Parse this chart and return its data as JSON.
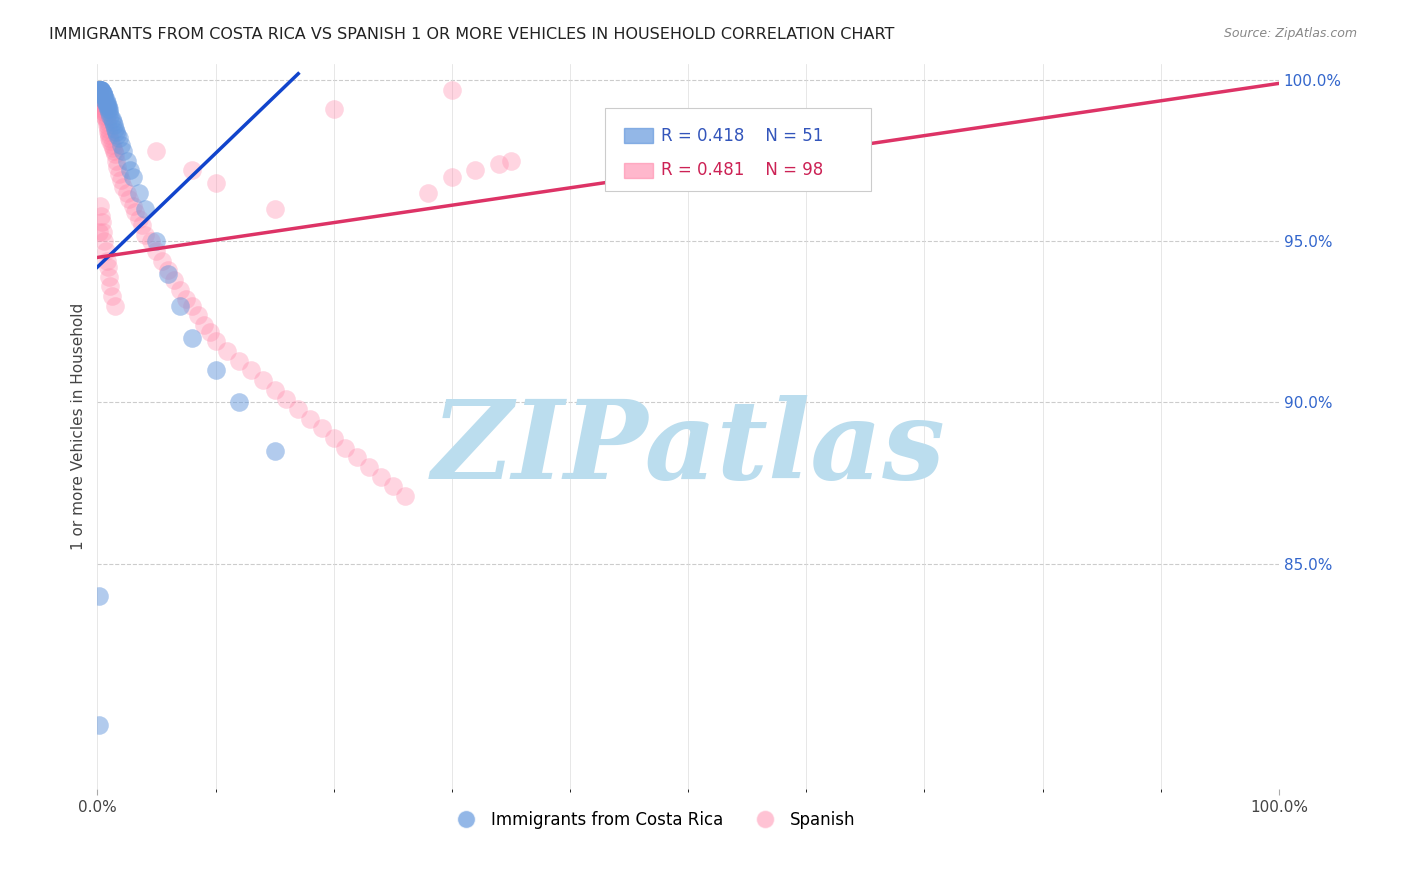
{
  "title": "IMMIGRANTS FROM COSTA RICA VS SPANISH 1 OR MORE VEHICLES IN HOUSEHOLD CORRELATION CHART",
  "source": "Source: ZipAtlas.com",
  "ylabel": "1 or more Vehicles in Household",
  "legend_blue_r": "R = 0.418",
  "legend_blue_n": "N = 51",
  "legend_pink_r": "R = 0.481",
  "legend_pink_n": "N = 98",
  "blue_color": "#6699DD",
  "pink_color": "#FF88AA",
  "blue_line_color": "#1144CC",
  "pink_line_color": "#DD3366",
  "watermark": "ZIPatlas",
  "watermark_color": "#BBDDEE",
  "blue_x": [
    0.001,
    0.001,
    0.001,
    0.002,
    0.002,
    0.002,
    0.002,
    0.003,
    0.003,
    0.003,
    0.004,
    0.004,
    0.004,
    0.005,
    0.005,
    0.005,
    0.006,
    0.006,
    0.006,
    0.007,
    0.007,
    0.008,
    0.008,
    0.009,
    0.009,
    0.01,
    0.01,
    0.011,
    0.012,
    0.013,
    0.014,
    0.015,
    0.016,
    0.017,
    0.018,
    0.02,
    0.022,
    0.025,
    0.028,
    0.03,
    0.035,
    0.04,
    0.05,
    0.06,
    0.07,
    0.08,
    0.1,
    0.12,
    0.15,
    0.001,
    0.001
  ],
  "blue_y": [
    0.997,
    0.997,
    0.997,
    0.997,
    0.997,
    0.997,
    0.997,
    0.997,
    0.997,
    0.997,
    0.996,
    0.996,
    0.996,
    0.996,
    0.996,
    0.995,
    0.995,
    0.995,
    0.994,
    0.994,
    0.993,
    0.993,
    0.992,
    0.992,
    0.991,
    0.991,
    0.99,
    0.989,
    0.988,
    0.987,
    0.986,
    0.985,
    0.984,
    0.983,
    0.982,
    0.98,
    0.978,
    0.975,
    0.972,
    0.97,
    0.965,
    0.96,
    0.95,
    0.94,
    0.93,
    0.92,
    0.91,
    0.9,
    0.885,
    0.84,
    0.8
  ],
  "pink_x": [
    0.001,
    0.001,
    0.001,
    0.001,
    0.001,
    0.002,
    0.002,
    0.002,
    0.002,
    0.003,
    0.003,
    0.003,
    0.004,
    0.004,
    0.004,
    0.005,
    0.005,
    0.005,
    0.006,
    0.006,
    0.006,
    0.007,
    0.007,
    0.008,
    0.008,
    0.009,
    0.009,
    0.01,
    0.01,
    0.011,
    0.012,
    0.013,
    0.014,
    0.015,
    0.016,
    0.017,
    0.018,
    0.02,
    0.022,
    0.025,
    0.027,
    0.03,
    0.032,
    0.035,
    0.038,
    0.04,
    0.045,
    0.05,
    0.055,
    0.06,
    0.065,
    0.07,
    0.075,
    0.08,
    0.085,
    0.09,
    0.095,
    0.1,
    0.11,
    0.12,
    0.13,
    0.14,
    0.15,
    0.16,
    0.17,
    0.18,
    0.19,
    0.2,
    0.21,
    0.22,
    0.23,
    0.24,
    0.25,
    0.26,
    0.28,
    0.3,
    0.32,
    0.34,
    0.35,
    0.001,
    0.002,
    0.003,
    0.004,
    0.005,
    0.006,
    0.007,
    0.008,
    0.009,
    0.01,
    0.011,
    0.012,
    0.015,
    0.2,
    0.3,
    0.05,
    0.08,
    0.1,
    0.15
  ],
  "pink_y": [
    0.997,
    0.997,
    0.997,
    0.996,
    0.996,
    0.996,
    0.996,
    0.995,
    0.995,
    0.995,
    0.994,
    0.994,
    0.993,
    0.993,
    0.992,
    0.992,
    0.991,
    0.991,
    0.99,
    0.99,
    0.989,
    0.989,
    0.988,
    0.987,
    0.986,
    0.985,
    0.984,
    0.983,
    0.982,
    0.981,
    0.98,
    0.979,
    0.978,
    0.977,
    0.975,
    0.973,
    0.971,
    0.969,
    0.967,
    0.965,
    0.963,
    0.961,
    0.959,
    0.957,
    0.955,
    0.952,
    0.95,
    0.947,
    0.944,
    0.941,
    0.938,
    0.935,
    0.932,
    0.93,
    0.927,
    0.924,
    0.922,
    0.919,
    0.916,
    0.913,
    0.91,
    0.907,
    0.904,
    0.901,
    0.898,
    0.895,
    0.892,
    0.889,
    0.886,
    0.883,
    0.88,
    0.877,
    0.874,
    0.871,
    0.965,
    0.97,
    0.972,
    0.974,
    0.975,
    0.953,
    0.961,
    0.958,
    0.956,
    0.953,
    0.95,
    0.947,
    0.944,
    0.942,
    0.939,
    0.936,
    0.933,
    0.93,
    0.991,
    0.997,
    0.978,
    0.972,
    0.968,
    0.96
  ],
  "xlim": [
    0.0,
    1.0
  ],
  "ylim": [
    0.78,
    1.005
  ],
  "figsize": [
    14.06,
    8.92
  ],
  "dpi": 100
}
